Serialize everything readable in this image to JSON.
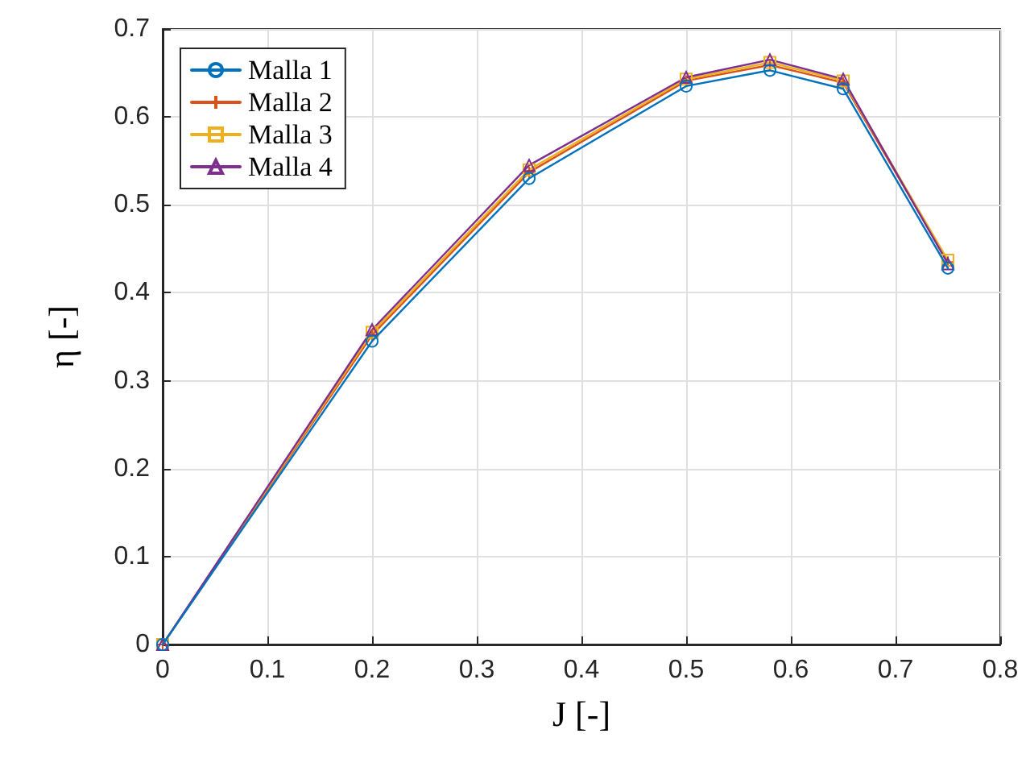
{
  "chart_data": {
    "type": "line",
    "xlabel": "J [-]",
    "ylabel": "η [-]",
    "x": [
      0,
      0.2,
      0.35,
      0.5,
      0.58,
      0.65,
      0.75
    ],
    "series": [
      {
        "name": "Malla 1",
        "color": "#0072bd",
        "marker": "circle",
        "values": [
          0,
          0.345,
          0.53,
          0.635,
          0.653,
          0.632,
          0.428
        ]
      },
      {
        "name": "Malla 2",
        "color": "#d95319",
        "marker": "cross",
        "values": [
          0,
          0.352,
          0.537,
          0.641,
          0.659,
          0.639,
          0.435
        ]
      },
      {
        "name": "Malla 3",
        "color": "#edb120",
        "marker": "square",
        "values": [
          0,
          0.355,
          0.54,
          0.643,
          0.662,
          0.641,
          0.437
        ]
      },
      {
        "name": "Malla 4",
        "color": "#7e2f8e",
        "marker": "triangle",
        "values": [
          0,
          0.358,
          0.545,
          0.645,
          0.665,
          0.643,
          0.433
        ]
      }
    ],
    "xlim": [
      0,
      0.8
    ],
    "xticks": [
      0,
      0.1,
      0.2,
      0.3,
      0.4,
      0.5,
      0.6,
      0.7,
      0.8
    ],
    "ylim": [
      0,
      0.7
    ],
    "yticks": [
      0,
      0.1,
      0.2,
      0.3,
      0.4,
      0.5,
      0.6,
      0.7
    ],
    "grid": true,
    "legend": "top left",
    "line_style": "solid"
  }
}
